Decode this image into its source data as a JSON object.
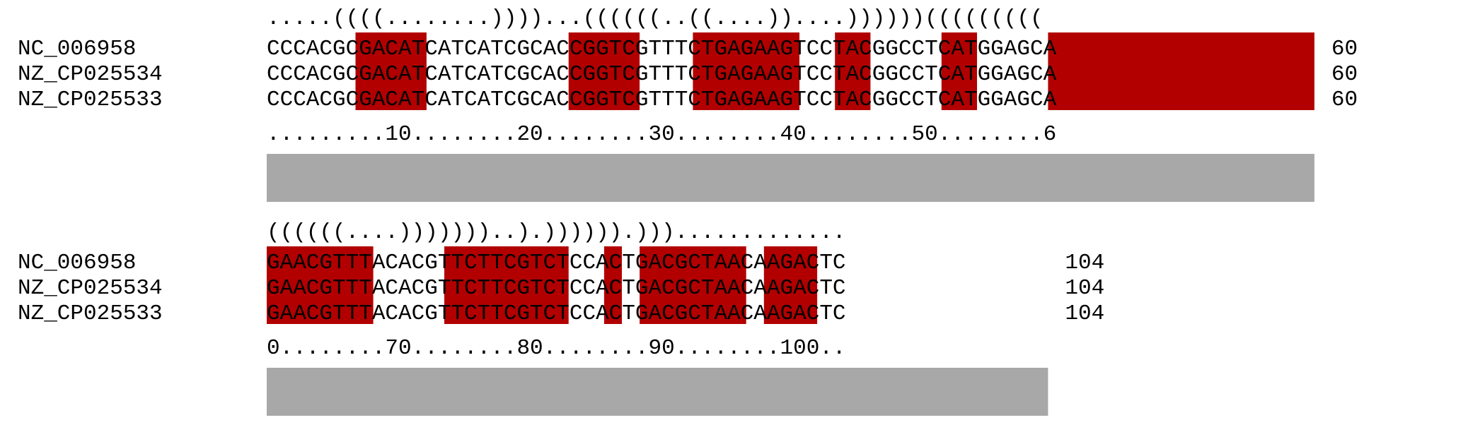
{
  "alignment": {
    "highlight_color": "#b20000",
    "conservation_bar_color": "#a8a8a8",
    "text_color": "#000000",
    "blocks": [
      {
        "structure": ".....((((........))))...((((((..((....))....))))))(((((((((",
        "rows": [
          {
            "name": "NC_006958",
            "seq": "CCCACGCGACATCATCATCGCACCGGTCGTTTCTGAGAAGTCCTACGGCCTCATGGAGCA",
            "end": "60"
          },
          {
            "name": "NZ_CP025534",
            "seq": "CCCACGCGACATCATCATCGCACCGGTCGTTTCTGAGAAGTCCTACGGCCTCATGGAGCA",
            "end": "60"
          },
          {
            "name": "NZ_CP025533",
            "seq": "CCCACGCGACATCATCATCGCACCGGTCGTTTCTGAGAAGTCCTACGGCCTCATGGAGCA",
            "end": "60"
          }
        ],
        "ruler": ".........10........20........30........40........50........6"
      },
      {
        "structure": "((((((....)))))))..).)))))).))).............",
        "rows": [
          {
            "name": "NC_006958",
            "seq": "GAACGTTTACACGTTCTTCGTCTCCACTGACGCTAACAAGACTC",
            "end": "104"
          },
          {
            "name": "NZ_CP025534",
            "seq": "GAACGTTTACACGTTCTTCGTCTCCACTGACGCTAACAAGACTC",
            "end": "104"
          },
          {
            "name": "NZ_CP025533",
            "seq": "GAACGTTTACACGTTCTTCGTCTCCACTGACGCTAACAAGACTC",
            "end": "104"
          }
        ],
        "ruler": "0........70........80........90........100.."
      }
    ]
  }
}
